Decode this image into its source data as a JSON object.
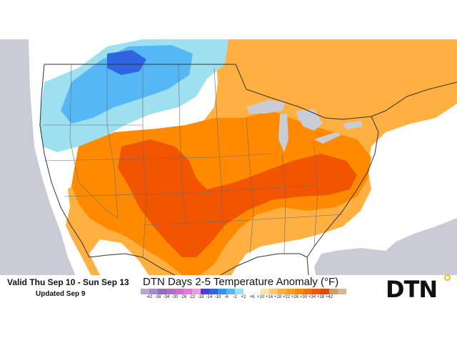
{
  "header": {
    "valid_text": "Valid Thu Sep 10 - Sun Sep 13",
    "updated_text": "Updated Sep 9",
    "title": "DTN Days 2-5 Temperature Anomaly (°F)"
  },
  "legend": {
    "unit": "°F",
    "ticks": [
      "-42",
      "-38",
      "-34",
      "-30",
      "-26",
      "-22",
      "-18",
      "-14",
      "-10",
      "-6",
      "-2",
      "+2",
      "+6",
      "+10",
      "+14",
      "+18",
      "+22",
      "+26",
      "+30",
      "+34",
      "+38",
      "+42"
    ],
    "colors": [
      "#b9a7d6",
      "#a48cc9",
      "#8f6fbd",
      "#b26cc7",
      "#cf6cd2",
      "#e07ddb",
      "#e99fe5",
      "#4c3fd1",
      "#2f66e0",
      "#3b8ef0",
      "#56b7f5",
      "#9fe0f0",
      "#ffffff",
      "#ffffff",
      "#ffe2a8",
      "#ffc870",
      "#ffb040",
      "#ff9f1a",
      "#ff8a00",
      "#ff6d00",
      "#f25400",
      "#e04a00",
      "#c8a070",
      "#d8b890"
    ]
  },
  "map": {
    "ocean_color": "#c9ccd4",
    "land_cold_color": "#9fe0f0",
    "land_cool_color": "#56b7f5",
    "land_cold_core_color": "#2f66e0",
    "land_neutral_color": "#ffffff",
    "land_warm_color": "#ffb040",
    "land_warmer_color": "#ff8a00",
    "land_hot_color": "#f25400"
  },
  "logo": {
    "text": "DTN",
    "dot_colors": [
      "#f5b800",
      "#2f9be0",
      "#6cc04a",
      "#e0422f"
    ]
  }
}
